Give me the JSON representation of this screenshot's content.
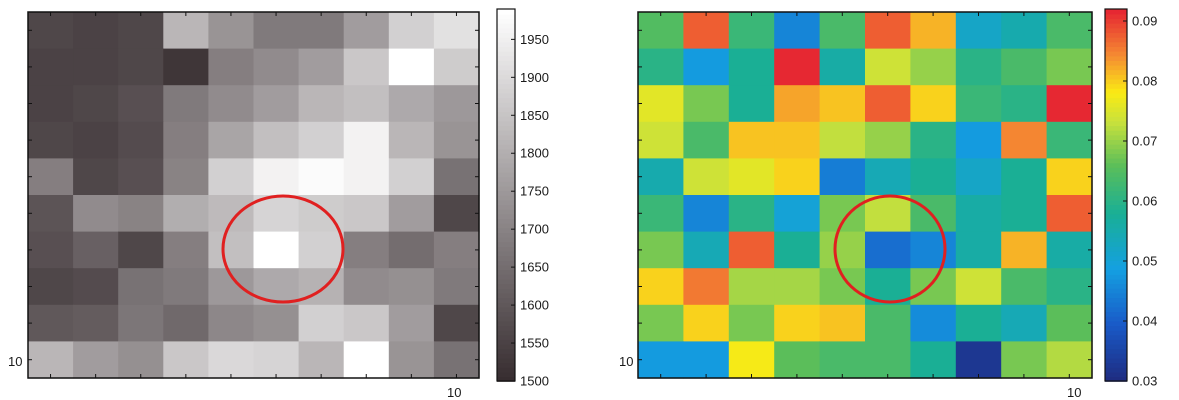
{
  "chart_data": [
    {
      "type": "heatmap",
      "colormap": "gray",
      "rows": 10,
      "cols": 10,
      "y_tick_label": "10",
      "x_tick_label": "10",
      "colorbar": {
        "range": [
          1500,
          1990
        ],
        "ticks": [
          "1500",
          "1550",
          "1600",
          "1650",
          "1700",
          "1750",
          "1800",
          "1850",
          "1900",
          "1950"
        ]
      },
      "values": [
        [
          1560,
          1550,
          1560,
          1820,
          1740,
          1680,
          1680,
          1760,
          1880,
          1920
        ],
        [
          1550,
          1550,
          1560,
          1520,
          1690,
          1720,
          1760,
          1860,
          1990,
          1870
        ],
        [
          1550,
          1560,
          1580,
          1680,
          1720,
          1760,
          1820,
          1840,
          1790,
          1750
        ],
        [
          1560,
          1550,
          1570,
          1690,
          1780,
          1840,
          1880,
          1960,
          1820,
          1740
        ],
        [
          1690,
          1560,
          1580,
          1700,
          1880,
          1960,
          1980,
          1960,
          1880,
          1660
        ],
        [
          1590,
          1720,
          1700,
          1800,
          1830,
          1890,
          1870,
          1860,
          1760,
          1560
        ],
        [
          1580,
          1620,
          1560,
          1690,
          1840,
          1990,
          1880,
          1690,
          1650,
          1690
        ],
        [
          1560,
          1570,
          1660,
          1680,
          1750,
          1790,
          1810,
          1720,
          1730,
          1680
        ],
        [
          1600,
          1610,
          1670,
          1640,
          1710,
          1730,
          1880,
          1860,
          1760,
          1560
        ],
        [
          1820,
          1760,
          1730,
          1860,
          1900,
          1890,
          1820,
          1990,
          1740,
          1660
        ]
      ],
      "annotation": {
        "type": "ellipse",
        "color": "#e02020"
      }
    },
    {
      "type": "heatmap",
      "colormap": "jet",
      "rows": 10,
      "cols": 10,
      "y_tick_label": "10",
      "x_tick_label": "10",
      "colorbar": {
        "range": [
          0.03,
          0.092
        ],
        "ticks": [
          "0.03",
          "0.04",
          "0.05",
          "0.06",
          "0.07",
          "0.08",
          "0.09"
        ]
      },
      "values": [
        [
          0.065,
          0.088,
          0.062,
          0.045,
          0.064,
          0.088,
          0.082,
          0.052,
          0.055,
          0.064
        ],
        [
          0.06,
          0.048,
          0.058,
          0.092,
          0.056,
          0.074,
          0.07,
          0.06,
          0.064,
          0.068
        ],
        [
          0.076,
          0.068,
          0.058,
          0.083,
          0.081,
          0.088,
          0.08,
          0.062,
          0.06,
          0.092
        ],
        [
          0.074,
          0.064,
          0.081,
          0.081,
          0.073,
          0.07,
          0.06,
          0.048,
          0.085,
          0.062
        ],
        [
          0.055,
          0.074,
          0.076,
          0.08,
          0.044,
          0.054,
          0.058,
          0.052,
          0.058,
          0.08
        ],
        [
          0.062,
          0.045,
          0.06,
          0.05,
          0.068,
          0.073,
          0.064,
          0.056,
          0.058,
          0.088
        ],
        [
          0.068,
          0.054,
          0.088,
          0.058,
          0.07,
          0.042,
          0.045,
          0.056,
          0.082,
          0.056
        ],
        [
          0.08,
          0.086,
          0.071,
          0.071,
          0.068,
          0.058,
          0.068,
          0.074,
          0.064,
          0.06
        ],
        [
          0.068,
          0.08,
          0.068,
          0.08,
          0.081,
          0.064,
          0.046,
          0.058,
          0.054,
          0.066
        ],
        [
          0.048,
          0.048,
          0.078,
          0.066,
          0.064,
          0.064,
          0.058,
          0.032,
          0.068,
          0.072
        ]
      ],
      "annotation": {
        "type": "ellipse",
        "color": "#e02020"
      }
    }
  ]
}
